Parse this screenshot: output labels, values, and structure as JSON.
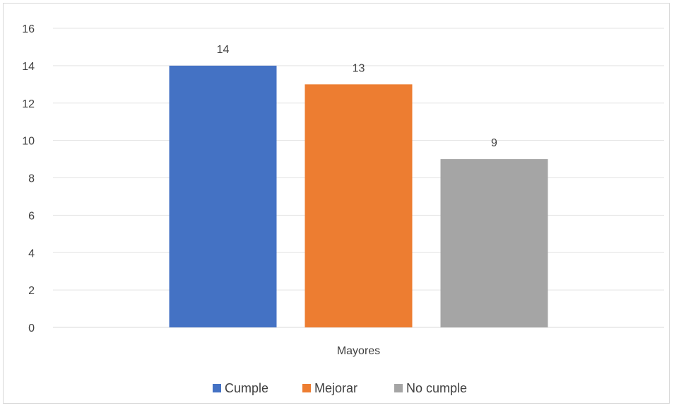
{
  "chart_data": {
    "type": "bar",
    "categories": [
      "Mayores"
    ],
    "series": [
      {
        "name": "Cumple",
        "values": [
          14
        ],
        "color": "#4472C4"
      },
      {
        "name": "Mejorar",
        "values": [
          13
        ],
        "color": "#ED7D31"
      },
      {
        "name": "No cumple",
        "values": [
          9
        ],
        "color": "#A5A5A5"
      }
    ],
    "ylim": [
      0,
      16
    ],
    "yticks": [
      0,
      2,
      4,
      6,
      8,
      10,
      12,
      14,
      16
    ],
    "data_labels": true,
    "grid": true,
    "legend_position": "bottom"
  }
}
